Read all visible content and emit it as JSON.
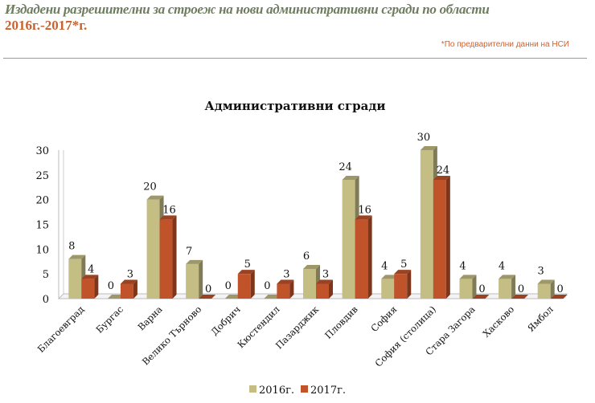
{
  "header": {
    "title": "Издадени разрешителни за строеж на нови административни сгради по области",
    "subtitle": "2016г.-2017*г.",
    "note": "*По предварителни данни на НСИ"
  },
  "chart_data": {
    "type": "bar",
    "title": "Административни сгради",
    "categories": [
      "Благоевград",
      "Бургас",
      "Варна",
      "Велико Търново",
      "Добрич",
      "Кюстендил",
      "Пазарджик",
      "Пловдив",
      "София",
      "София (столица)",
      "Стара Загора",
      "Хасково",
      "Ямбол"
    ],
    "series": [
      {
        "name": "2016г.",
        "color": "#c4bd84",
        "values": [
          8,
          0,
          20,
          7,
          0,
          0,
          6,
          24,
          4,
          30,
          4,
          4,
          3
        ]
      },
      {
        "name": "2017г.",
        "color": "#c0532a",
        "values": [
          4,
          3,
          16,
          0,
          5,
          3,
          3,
          16,
          5,
          24,
          0,
          0,
          0
        ]
      }
    ],
    "yticks": [
      0,
      5,
      10,
      15,
      20,
      25,
      30
    ],
    "ylim": [
      0,
      30
    ],
    "legend": "bottom",
    "grid": false
  }
}
